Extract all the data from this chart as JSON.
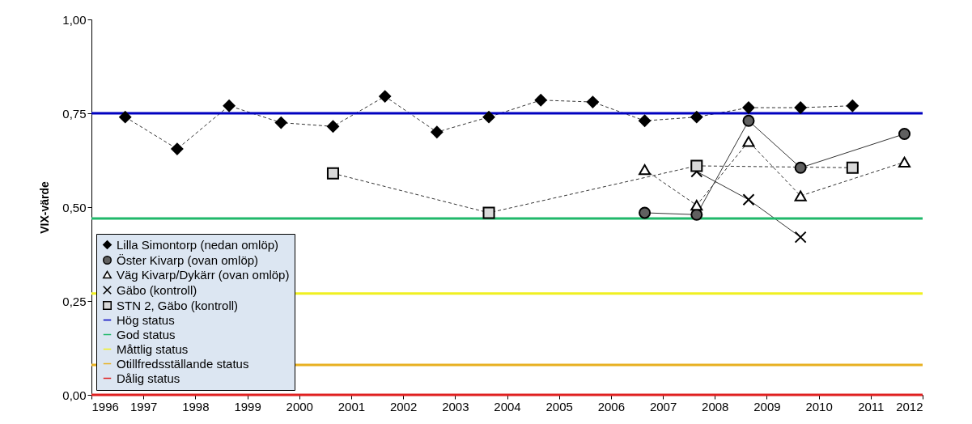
{
  "chart_data": {
    "type": "line",
    "ylabel": "VIX-värde",
    "xlim": [
      1996,
      2012
    ],
    "xticks": [
      1996,
      1997,
      1998,
      1999,
      2000,
      2001,
      2002,
      2003,
      2004,
      2005,
      2006,
      2007,
      2008,
      2009,
      2010,
      2011,
      2012
    ],
    "ylim": [
      0,
      1
    ],
    "yticks": [
      {
        "value": 0,
        "label": "0,00"
      },
      {
        "value": 0.25,
        "label": "0,25"
      },
      {
        "value": 0.5,
        "label": "0,50"
      },
      {
        "value": 0.75,
        "label": "0,75"
      },
      {
        "value": 1,
        "label": "1,00"
      }
    ],
    "grid": false,
    "legend": "bottom left",
    "series": [
      {
        "name": "Lilla Simontorp (nedan omlöp)",
        "color": "#000000",
        "marker": "diamond",
        "line_style": "dashed",
        "x": [
          1996.65,
          1997.65,
          1998.65,
          1999.65,
          2000.65,
          2001.65,
          2002.65,
          2003.65,
          2004.65,
          2005.65,
          2006.65,
          2007.65,
          2008.65,
          2009.65,
          2010.65
        ],
        "values": [
          0.74,
          0.655,
          0.77,
          0.725,
          0.715,
          0.795,
          0.7,
          0.74,
          0.785,
          0.78,
          0.73,
          0.74,
          0.765,
          0.765,
          0.77
        ]
      },
      {
        "name": "Öster Kivarp (ovan omlöp)",
        "color": "#606060",
        "marker": "circle",
        "line_style": "solid",
        "x": [
          2006.65,
          2007.65,
          2008.65,
          2009.65,
          2011.65
        ],
        "values": [
          0.485,
          0.48,
          0.73,
          0.605,
          0.695
        ]
      },
      {
        "name": "Väg Kivarp/Dykärr (ovan omlöp)",
        "color": "#ffffff",
        "marker": "triangle",
        "line_style": "dashed",
        "x": [
          2006.65,
          2007.65,
          2008.65,
          2009.65,
          2011.65
        ],
        "values": [
          0.6,
          0.505,
          0.675,
          0.53,
          0.62
        ]
      },
      {
        "name": "Gäbo (kontroll)",
        "color": "#000000",
        "marker": "cross",
        "line_style": "solid",
        "x": [
          2007.65,
          2008.65,
          2009.65
        ],
        "values": [
          0.595,
          0.52,
          0.42
        ]
      },
      {
        "name": "STN 2, Gäbo (kontroll)",
        "color": "#d9d9d9",
        "marker": "square",
        "line_style": "dashed",
        "x": [
          2000.65,
          2003.65,
          2007.65,
          2010.65
        ],
        "values": [
          0.59,
          0.485,
          0.61,
          0.605
        ]
      }
    ],
    "ref_lines": [
      {
        "axis": "y",
        "value": 0.75,
        "label": "Hög status",
        "color": "#0000c0"
      },
      {
        "axis": "y",
        "value": 0.47,
        "label": "God status",
        "color": "#20b86a"
      },
      {
        "axis": "y",
        "value": 0.27,
        "label": "Måttlig status",
        "color": "#f0f020"
      },
      {
        "axis": "y",
        "value": 0.08,
        "label": "Otillfredsställande status",
        "color": "#e8b020"
      },
      {
        "axis": "y",
        "value": 0,
        "label": "Dålig status",
        "color": "#e02020"
      }
    ]
  }
}
